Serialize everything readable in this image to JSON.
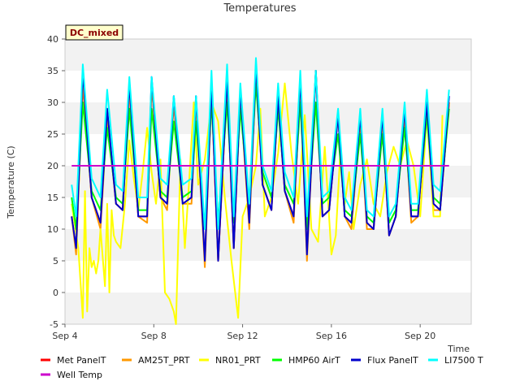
{
  "chart_data": {
    "type": "line",
    "title": "Temperatures",
    "xlabel": "Time",
    "ylabel": "Temperature (C)",
    "badge": "DC_mixed",
    "xlim": [
      4.0,
      22.3
    ],
    "ylim": [
      -5,
      40
    ],
    "x_ticks": [
      {
        "x": 4,
        "label": "Sep 4"
      },
      {
        "x": 8,
        "label": "Sep 8"
      },
      {
        "x": 12,
        "label": "Sep 12"
      },
      {
        "x": 16,
        "label": "Sep 16"
      },
      {
        "x": 20,
        "label": "Sep 20"
      }
    ],
    "y_ticks": [
      -5,
      0,
      5,
      10,
      15,
      20,
      25,
      30,
      35,
      40
    ],
    "grid": "alternating horizontal bands",
    "legend_position": "bottom",
    "colors": {
      "band": "#f2f2f2",
      "badge_bg": "#ffffcc"
    },
    "series": [
      {
        "name": "Met PanelT",
        "color": "#ff0000",
        "x": [
          4.3,
          4.5,
          4.8,
          5.2,
          5.6,
          5.9,
          6.3,
          6.6,
          6.9,
          7.3,
          7.7,
          7.9,
          8.3,
          8.6,
          8.9,
          9.3,
          9.7,
          9.9,
          10.3,
          10.6,
          10.9,
          11.3,
          11.6,
          11.9,
          12.3,
          12.6,
          12.9,
          13.3,
          13.6,
          13.9,
          14.3,
          14.6,
          14.9,
          15.3,
          15.6,
          15.9,
          16.3,
          16.6,
          16.9,
          17.3,
          17.6,
          17.9,
          18.3,
          18.6,
          18.9,
          19.3,
          19.6,
          19.9,
          20.3,
          20.6,
          20.9,
          21.3
        ],
        "y": [
          12,
          7,
          33,
          15,
          11,
          28,
          14,
          13,
          32,
          12,
          12,
          33,
          15,
          14,
          30,
          14,
          15,
          30,
          5,
          32,
          5,
          33,
          7,
          31,
          11,
          35,
          17,
          13,
          30,
          16,
          12,
          33,
          6,
          35,
          12,
          13,
          28,
          12,
          11,
          27,
          11,
          10,
          27,
          9,
          12,
          28,
          12,
          12,
          30,
          14,
          13,
          30
        ]
      },
      {
        "name": "AM25T_PRT",
        "color": "#ff9900",
        "x": [
          4.3,
          4.5,
          4.8,
          5.2,
          5.6,
          5.9,
          6.3,
          6.6,
          6.9,
          7.3,
          7.7,
          7.9,
          8.3,
          8.6,
          8.9,
          9.3,
          9.7,
          9.9,
          10.3,
          10.6,
          10.9,
          11.3,
          11.6,
          11.9,
          12.3,
          12.6,
          12.9,
          13.3,
          13.6,
          13.9,
          14.3,
          14.6,
          14.9,
          15.3,
          15.6,
          15.9,
          16.3,
          16.6,
          16.9,
          17.3,
          17.6,
          17.9,
          18.3,
          18.6,
          18.9,
          19.3,
          19.6,
          19.9,
          20.3,
          20.6,
          20.9,
          21.3
        ],
        "y": [
          12,
          6,
          33,
          15,
          10,
          28,
          14,
          13,
          32,
          12,
          11,
          33,
          15,
          13,
          30,
          14,
          14,
          30,
          4,
          32,
          5,
          33,
          7,
          31,
          10,
          35,
          17,
          13,
          30,
          16,
          11,
          33,
          5,
          35,
          12,
          13,
          28,
          12,
          10,
          27,
          10,
          10,
          27,
          9,
          12,
          28,
          11,
          12,
          30,
          13,
          13,
          30
        ]
      },
      {
        "name": "NR01_PRT",
        "color": "#ffff00",
        "x": [
          4.3,
          4.6,
          4.8,
          4.9,
          5.0,
          5.1,
          5.2,
          5.3,
          5.4,
          5.5,
          5.6,
          5.8,
          5.9,
          6.0,
          6.1,
          6.2,
          6.3,
          6.5,
          6.7,
          6.9,
          7.1,
          7.3,
          7.5,
          7.7,
          7.9,
          8.1,
          8.3,
          8.5,
          8.7,
          8.9,
          9.0,
          9.2,
          9.4,
          9.6,
          9.8,
          10.0,
          10.3,
          10.6,
          10.9,
          11.2,
          11.5,
          11.8,
          12.0,
          12.3,
          12.6,
          12.8,
          13.0,
          13.3,
          13.6,
          13.9,
          14.2,
          14.5,
          14.8,
          15.1,
          15.4,
          15.7,
          16.0,
          16.2,
          16.4,
          16.6,
          16.8,
          17.0,
          17.3,
          17.6,
          17.9,
          18.2,
          18.5,
          18.8,
          19.1,
          19.4,
          19.7,
          20.0,
          20.3,
          20.6,
          20.9,
          21.0
        ],
        "y": [
          14,
          7,
          -4,
          16,
          -3,
          7,
          4,
          5,
          3,
          5,
          10,
          1,
          14,
          0,
          13,
          9,
          8,
          7,
          14,
          24,
          18,
          13,
          19,
          26,
          19,
          14,
          21,
          0,
          -1,
          -3,
          -5,
          21,
          7,
          18,
          30,
          17,
          21,
          30,
          27,
          15,
          5,
          -4,
          12,
          15,
          20,
          29,
          12,
          15,
          22,
          33,
          22,
          14,
          28,
          10,
          8,
          23,
          6,
          9,
          22,
          14,
          19,
          10,
          17,
          21,
          14,
          12,
          19,
          23,
          20,
          24,
          20,
          12,
          28,
          12,
          12,
          28
        ]
      },
      {
        "name": "HMP60 AirT",
        "color": "#00ff00",
        "x": [
          4.3,
          4.5,
          4.8,
          5.2,
          5.6,
          5.9,
          6.3,
          6.6,
          6.9,
          7.3,
          7.7,
          7.9,
          8.3,
          8.6,
          8.9,
          9.3,
          9.7,
          9.9,
          10.3,
          10.6,
          10.9,
          11.3,
          11.6,
          11.9,
          12.3,
          12.6,
          12.9,
          13.3,
          13.6,
          13.9,
          14.3,
          14.6,
          14.9,
          15.3,
          15.6,
          15.9,
          16.3,
          16.6,
          16.9,
          17.3,
          17.6,
          17.9,
          18.3,
          18.6,
          18.9,
          19.3,
          19.6,
          19.9,
          20.3,
          20.6,
          20.9,
          21.3
        ],
        "y": [
          15,
          10,
          30,
          16,
          13,
          26,
          15,
          14,
          29,
          13,
          13,
          29,
          16,
          15,
          27,
          15,
          16,
          27,
          10,
          30,
          11,
          30,
          11,
          29,
          14,
          33,
          19,
          15,
          29,
          17,
          14,
          30,
          10,
          30,
          14,
          15,
          25,
          13,
          12,
          25,
          12,
          11,
          25,
          11,
          13,
          26,
          13,
          13,
          28,
          15,
          14,
          29
        ]
      },
      {
        "name": "Flux PanelT",
        "color": "#0000cc",
        "x": [
          4.3,
          4.5,
          4.8,
          5.2,
          5.6,
          5.9,
          6.3,
          6.6,
          6.9,
          7.3,
          7.7,
          7.9,
          8.3,
          8.6,
          8.9,
          9.3,
          9.7,
          9.9,
          10.3,
          10.6,
          10.9,
          11.3,
          11.6,
          11.9,
          12.3,
          12.6,
          12.9,
          13.3,
          13.6,
          13.9,
          14.3,
          14.6,
          14.9,
          15.3,
          15.6,
          15.9,
          16.3,
          16.6,
          16.9,
          17.3,
          17.6,
          17.9,
          18.3,
          18.6,
          18.9,
          19.3,
          19.6,
          19.9,
          20.3,
          20.6,
          20.9,
          21.3
        ],
        "y": [
          12,
          7,
          35,
          15,
          11,
          29,
          14,
          13,
          33,
          12,
          12,
          34,
          15,
          14,
          31,
          14,
          15,
          31,
          5,
          33,
          5,
          34,
          7,
          32,
          11,
          36,
          17,
          13,
          31,
          16,
          12,
          34,
          6,
          35,
          12,
          13,
          28,
          12,
          11,
          28,
          11,
          10,
          28,
          9,
          12,
          29,
          12,
          12,
          30,
          14,
          13,
          31
        ]
      },
      {
        "name": "LI7500 T",
        "color": "#00ffff",
        "x": [
          4.3,
          4.5,
          4.8,
          5.2,
          5.6,
          5.9,
          6.3,
          6.6,
          6.9,
          7.3,
          7.7,
          7.9,
          8.3,
          8.6,
          8.9,
          9.3,
          9.7,
          9.9,
          10.3,
          10.6,
          10.9,
          11.3,
          11.6,
          11.9,
          12.3,
          12.6,
          12.9,
          13.3,
          13.6,
          13.9,
          14.3,
          14.6,
          14.9,
          15.3,
          15.6,
          15.9,
          16.3,
          16.6,
          16.9,
          17.3,
          17.6,
          17.9,
          18.3,
          18.6,
          18.9,
          19.3,
          19.6,
          19.9,
          20.3,
          20.6,
          20.9,
          21.3
        ],
        "y": [
          17,
          12,
          36,
          18,
          15,
          32,
          17,
          16,
          34,
          15,
          15,
          34,
          18,
          17,
          31,
          17,
          18,
          31,
          10,
          35,
          10,
          36,
          12,
          33,
          14,
          37,
          20,
          16,
          33,
          19,
          15,
          35,
          12,
          35,
          15,
          16,
          29,
          15,
          13,
          29,
          13,
          12,
          29,
          12,
          14,
          30,
          14,
          14,
          32,
          17,
          16,
          32
        ]
      },
      {
        "name": "Well Temp",
        "color": "#cc00cc",
        "x": [
          4.3,
          21.3
        ],
        "y": [
          20,
          20
        ]
      }
    ]
  }
}
